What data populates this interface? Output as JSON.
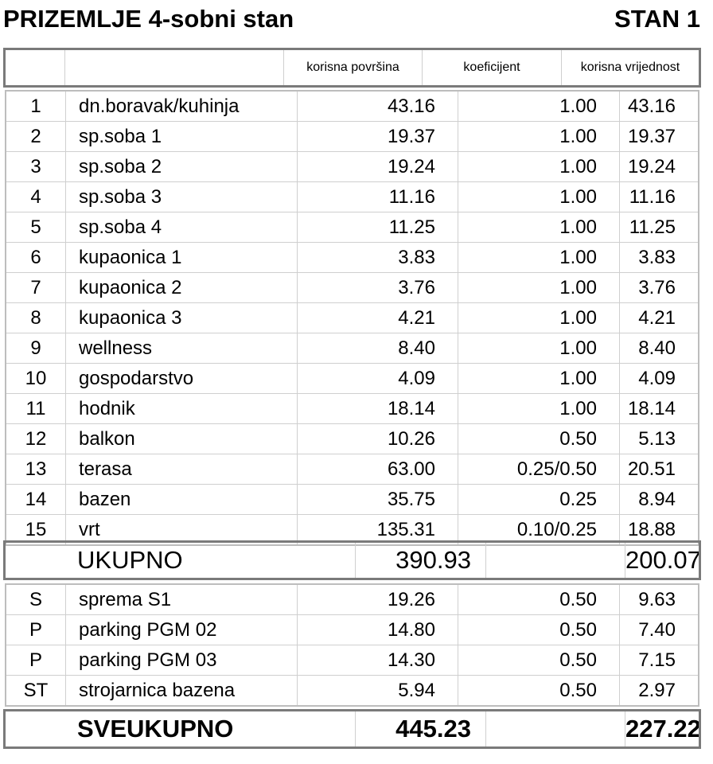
{
  "title_left": "PRIZEMLJE  4-sobni stan",
  "title_right": "STAN 1",
  "headers": [
    "",
    "",
    "korisna površina",
    "koeficijent",
    "korisna vrijednost"
  ],
  "rows": [
    [
      "1",
      "dn.boravak/kuhinja",
      "43.16",
      "1.00",
      "43.16"
    ],
    [
      "2",
      "sp.soba 1",
      "19.37",
      "1.00",
      "19.37"
    ],
    [
      "3",
      "sp.soba 2",
      "19.24",
      "1.00",
      "19.24"
    ],
    [
      "4",
      "sp.soba 3",
      "11.16",
      "1.00",
      "11.16"
    ],
    [
      "5",
      "sp.soba 4",
      "11.25",
      "1.00",
      "11.25"
    ],
    [
      "6",
      "kupaonica 1",
      "3.83",
      "1.00",
      "3.83"
    ],
    [
      "7",
      "kupaonica 2",
      "3.76",
      "1.00",
      "3.76"
    ],
    [
      "8",
      "kupaonica 3",
      "4.21",
      "1.00",
      "4.21"
    ],
    [
      "9",
      "wellness",
      "8.40",
      "1.00",
      "8.40"
    ],
    [
      "10",
      "gospodarstvo",
      "4.09",
      "1.00",
      "4.09"
    ],
    [
      "11",
      "hodnik",
      "18.14",
      "1.00",
      "18.14"
    ],
    [
      "12",
      "balkon",
      "10.26",
      "0.50",
      "5.13"
    ],
    [
      "13",
      "terasa",
      "63.00",
      "0.25/0.50",
      "20.51"
    ],
    [
      "14",
      "bazen",
      "35.75",
      "0.25",
      "8.94"
    ],
    [
      "15",
      "vrt",
      "135.31",
      "0.10/0.25",
      "18.88"
    ]
  ],
  "ukupno": {
    "label": "UKUPNO",
    "area": "390.93",
    "value": "200.07"
  },
  "extra_rows": [
    [
      "S",
      "sprema S1",
      "19.26",
      "0.50",
      "9.63"
    ],
    [
      "P",
      "parking PGM 02",
      "14.80",
      "0.50",
      "7.40"
    ],
    [
      "P",
      "parking PGM 03",
      "14.30",
      "0.50",
      "7.15"
    ],
    [
      "ST",
      "strojarnica bazena",
      "5.94",
      "0.50",
      "2.97"
    ]
  ],
  "sveukupno": {
    "label": "SVEUKUPNO",
    "area": "445.23",
    "value": "227.22"
  }
}
